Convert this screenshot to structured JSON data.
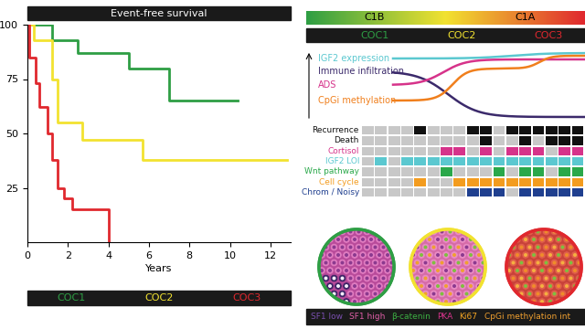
{
  "chart_data": {
    "type": "line",
    "title": "Event-free survival",
    "xlabel": "Years",
    "xlim": [
      0,
      13
    ],
    "ylim": [
      0,
      100
    ],
    "xticks": [
      0,
      2,
      4,
      6,
      8,
      10,
      12
    ],
    "yticks": [
      25,
      50,
      75,
      100
    ],
    "line_style": "steps",
    "series": [
      {
        "name": "COC1",
        "color": "#2e9e44",
        "x": [
          0,
          1.2,
          2.5,
          5,
          7,
          10.4
        ],
        "values": [
          100,
          93,
          87,
          80,
          65,
          65
        ]
      },
      {
        "name": "COC2",
        "color": "#f2e230",
        "x": [
          0,
          0.3,
          1.2,
          1.5,
          2.7,
          5.7,
          12.8
        ],
        "values": [
          100,
          93,
          75,
          55,
          47,
          38,
          38
        ]
      },
      {
        "name": "COC3",
        "color": "#e0282e",
        "x": [
          0,
          0.1,
          0.4,
          0.6,
          1.0,
          1.2,
          1.5,
          1.8,
          2.2,
          4.0
        ],
        "values": [
          100,
          85,
          73,
          62,
          50,
          38,
          25,
          20,
          15,
          0
        ]
      }
    ]
  },
  "diagram": {
    "subtypes": [
      "C1B",
      "C1A"
    ],
    "clusters": [
      {
        "label": "COC1",
        "color": "#2e9e44"
      },
      {
        "label": "COC2",
        "color": "#f2e230"
      },
      {
        "label": "COC3",
        "color": "#e0282e"
      }
    ],
    "profiles": [
      {
        "label": "IGF2 expression",
        "color": "#5bc8d0"
      },
      {
        "label": "Immune infiltration",
        "color": "#3b2a6b"
      },
      {
        "label": "ADS",
        "color": "#d6338a"
      },
      {
        "label": "CpGi methylation",
        "color": "#f07f1c"
      }
    ],
    "heatmap": {
      "absent_color": "#c8c8c8",
      "rows": [
        {
          "label": "Recurrence",
          "color": "#111111",
          "values": [
            0,
            0,
            0,
            0,
            1,
            0,
            0,
            0,
            1,
            1,
            0,
            1,
            1,
            1,
            1,
            1,
            1
          ]
        },
        {
          "label": "Death",
          "color": "#111111",
          "values": [
            0,
            0,
            0,
            0,
            0,
            0,
            0,
            0,
            0,
            1,
            0,
            0,
            1,
            0,
            1,
            1,
            1
          ]
        },
        {
          "label": "Cortisol",
          "color": "#d6338a",
          "values": [
            0,
            0,
            0,
            0,
            0,
            0,
            1,
            1,
            0,
            1,
            0,
            1,
            1,
            1,
            0,
            1,
            1
          ]
        },
        {
          "label": "IGF2 LOI",
          "color": "#5bc8d0",
          "values": [
            0,
            1,
            0,
            1,
            1,
            1,
            1,
            1,
            1,
            1,
            1,
            1,
            1,
            1,
            1,
            1,
            1
          ]
        },
        {
          "label": "Wnt pathway",
          "color": "#2aa84a",
          "values": [
            0,
            0,
            0,
            0,
            0,
            0,
            1,
            0,
            0,
            0,
            1,
            0,
            1,
            1,
            0,
            1,
            1
          ]
        },
        {
          "label": "Cell cycle",
          "color": "#f39c1f",
          "values": [
            0,
            0,
            0,
            0,
            1,
            0,
            0,
            1,
            1,
            1,
            1,
            1,
            1,
            1,
            1,
            1,
            1
          ]
        },
        {
          "label": "Chrom / Noisy",
          "color": "#1f3f8f",
          "values": [
            0,
            0,
            0,
            0,
            0,
            0,
            0,
            0,
            1,
            1,
            1,
            0,
            1,
            1,
            1,
            1,
            1
          ]
        }
      ]
    },
    "stains": [
      {
        "label": "SF1 low",
        "color": "#7a4fb0"
      },
      {
        "label": "SF1 high",
        "color": "#e05fa8"
      },
      {
        "label": "β-catenin",
        "color": "#3cb043"
      },
      {
        "label": "PKA",
        "color": "#d6338a"
      },
      {
        "label": "Ki67",
        "color": "#f5a623"
      },
      {
        "label": "CpGi methylation int",
        "color": "#f0a030"
      }
    ]
  }
}
